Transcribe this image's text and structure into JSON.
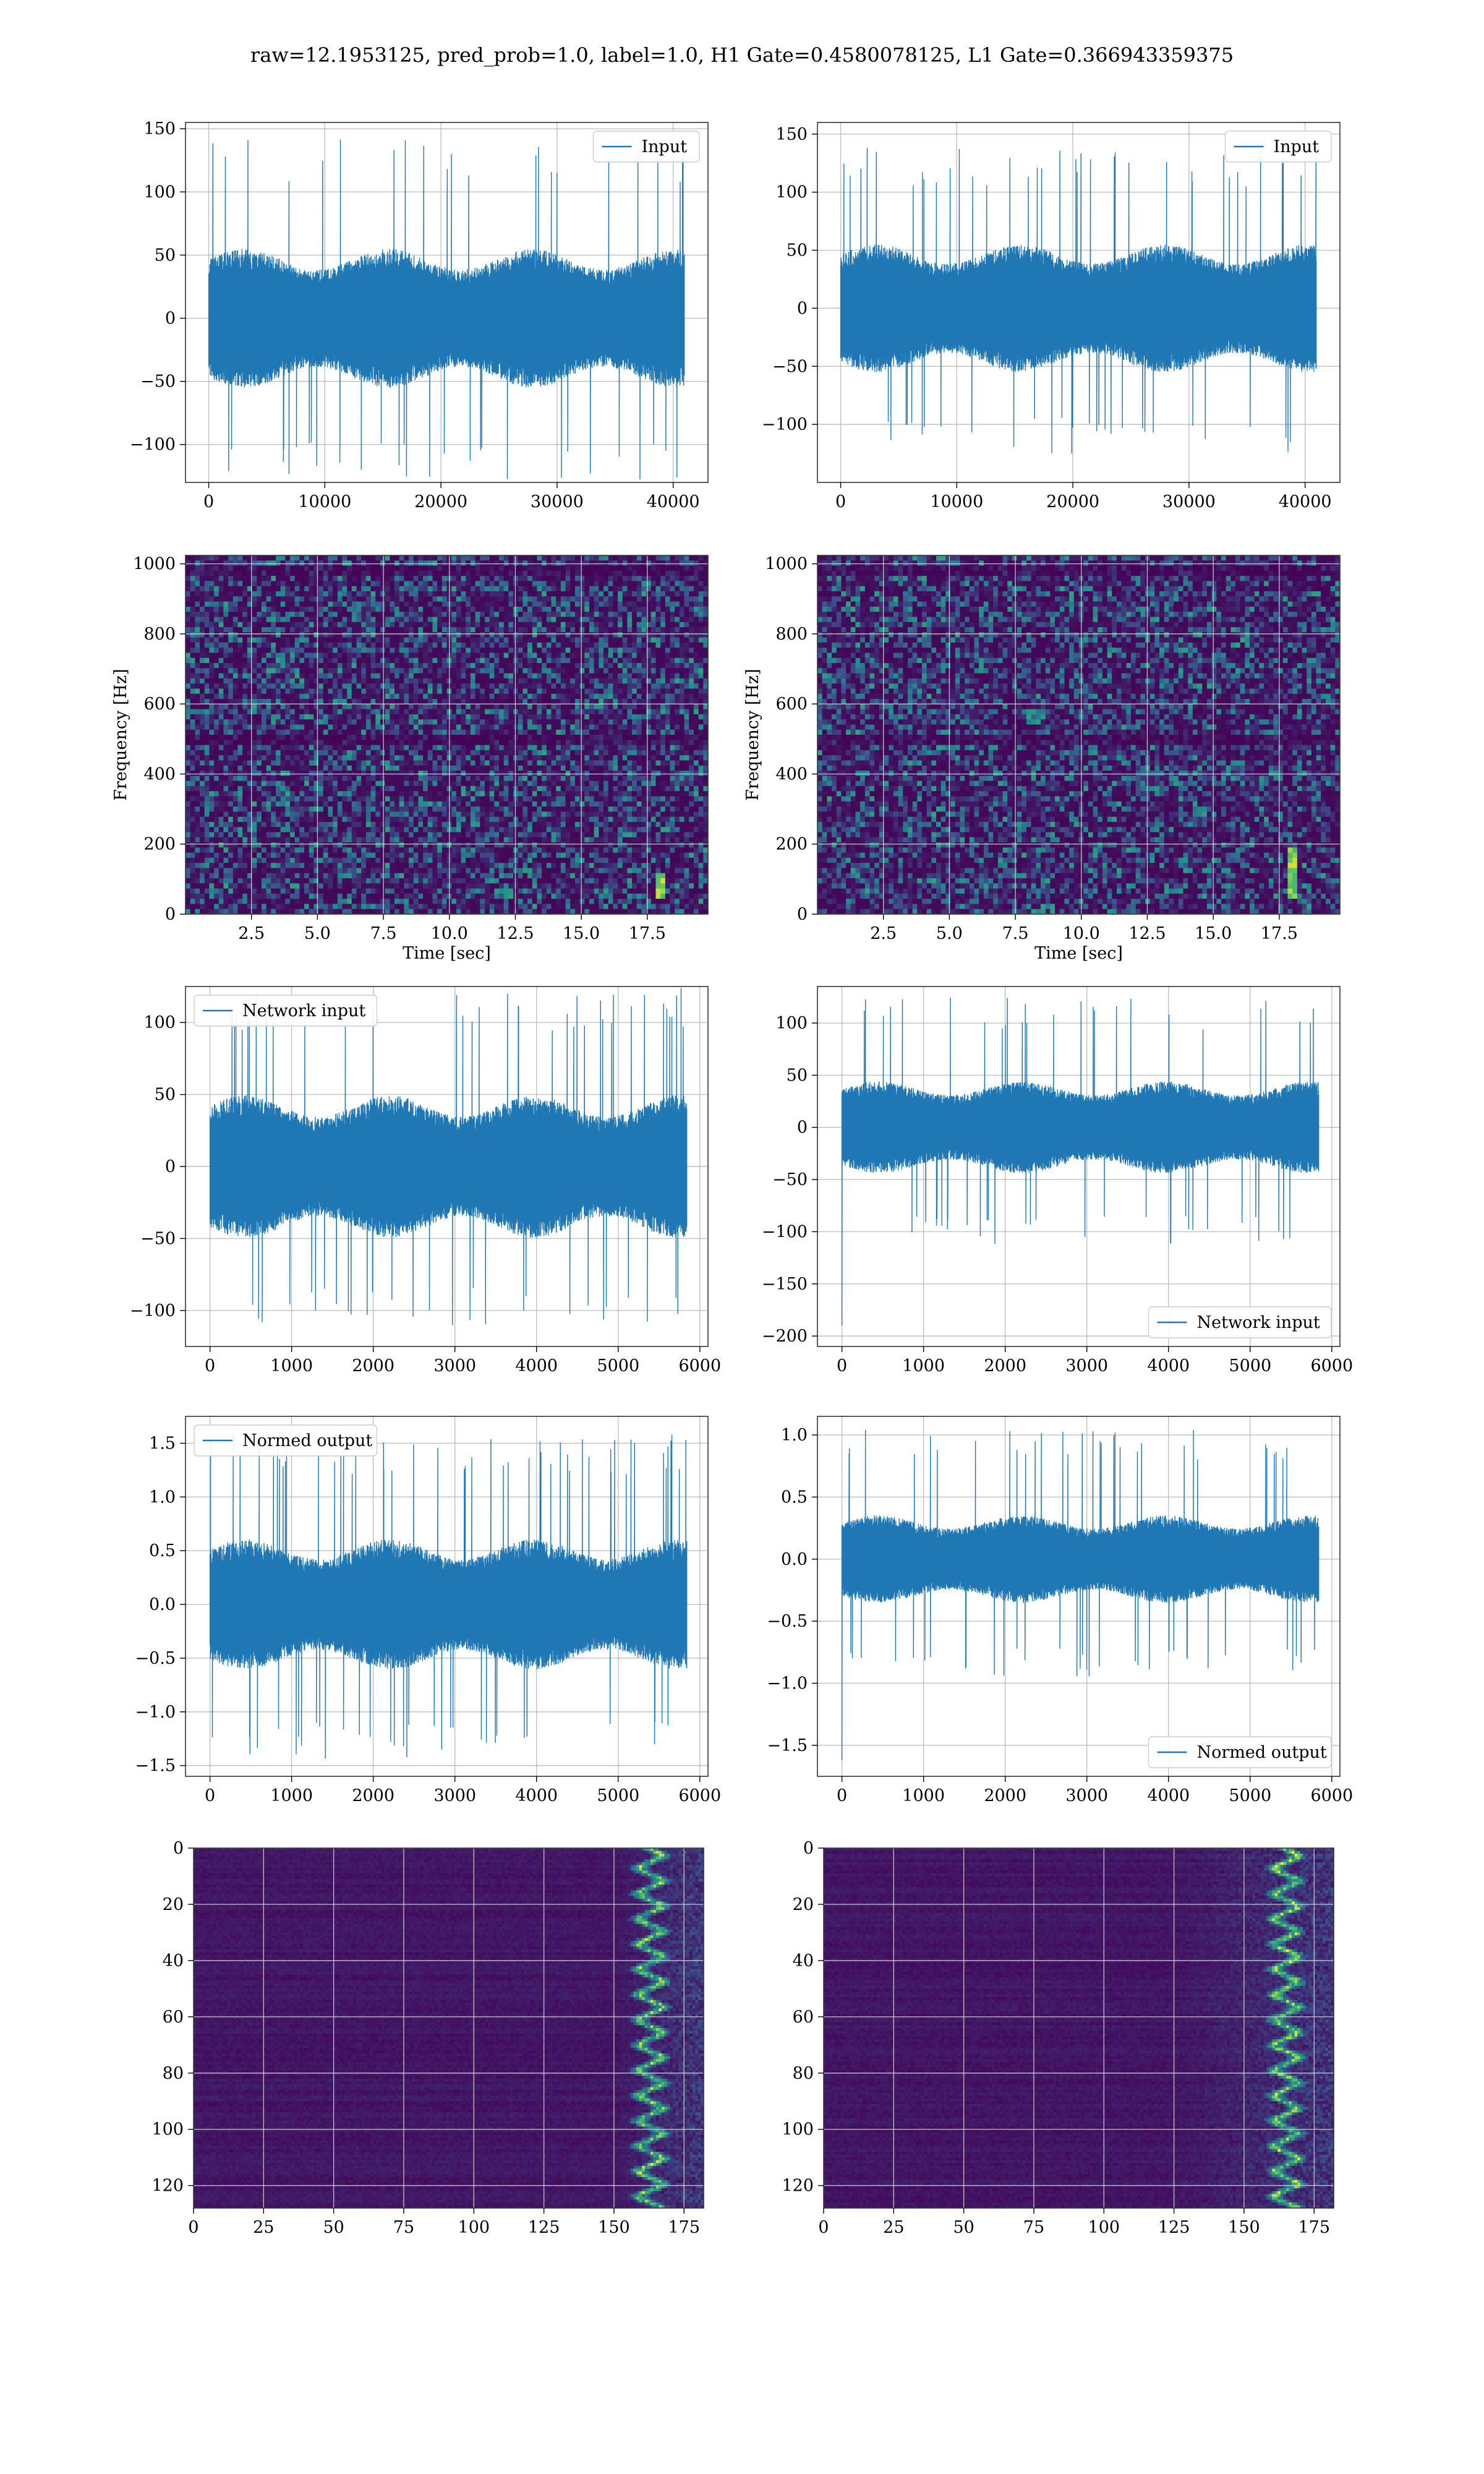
{
  "figure_title": "raw=12.1953125, pred_prob=1.0, label=1.0, H1 Gate=0.4580078125, L1 Gate=0.366943359375",
  "colors": {
    "line": "#1f77b4",
    "grid": "#b0b0b0",
    "spine": "#333333",
    "viridis_dark": "#440154"
  },
  "chart_data": [
    {
      "id": "h1-input",
      "type": "line",
      "series": [
        {
          "name": "Input",
          "values": []
        }
      ],
      "xlim": [
        -2000,
        43000
      ],
      "ylim": [
        -130,
        155
      ],
      "x_ticks": [
        0,
        10000,
        20000,
        30000,
        40000
      ],
      "x_tick_labels": [
        "0",
        "10000",
        "20000",
        "30000",
        "40000"
      ],
      "y_ticks": [
        -100,
        -50,
        0,
        50,
        100,
        150
      ],
      "y_tick_labels": [
        "−100",
        "−50",
        "0",
        "50",
        "100",
        "150"
      ],
      "n_points": 40960,
      "amplitude_typical": 50,
      "amplitude_max": 143,
      "xlabel": "",
      "ylabel": "",
      "legend": "upper right",
      "grid": true
    },
    {
      "id": "l1-input",
      "type": "line",
      "series": [
        {
          "name": "Input",
          "values": []
        }
      ],
      "xlim": [
        -2000,
        43000
      ],
      "ylim": [
        -150,
        160
      ],
      "x_ticks": [
        0,
        10000,
        20000,
        30000,
        40000
      ],
      "x_tick_labels": [
        "0",
        "10000",
        "20000",
        "30000",
        "40000"
      ],
      "y_ticks": [
        -100,
        -50,
        0,
        50,
        100,
        150
      ],
      "y_tick_labels": [
        "−100",
        "−50",
        "0",
        "50",
        "100",
        "150"
      ],
      "n_points": 40960,
      "amplitude_typical": 50,
      "amplitude_max": 140,
      "xlabel": "",
      "ylabel": "",
      "legend": "upper right",
      "grid": true
    },
    {
      "id": "h1-spectrogram",
      "type": "heatmap",
      "xlim": [
        0,
        19.8
      ],
      "ylim": [
        0,
        1024
      ],
      "x_ticks": [
        2.5,
        5.0,
        7.5,
        10.0,
        12.5,
        15.0,
        17.5
      ],
      "x_tick_labels": [
        "2.5",
        "5.0",
        "7.5",
        "10.0",
        "12.5",
        "15.0",
        "17.5"
      ],
      "y_ticks": [
        0,
        200,
        400,
        600,
        800,
        1000
      ],
      "y_tick_labels": [
        "0",
        "200",
        "400",
        "600",
        "800",
        "1000"
      ],
      "xlabel": "Time [sec]",
      "ylabel": "Frequency [Hz]",
      "colormap": "viridis",
      "grid": true,
      "hotspot": {
        "time": 18.0,
        "freq_low": 50,
        "freq_high": 120
      }
    },
    {
      "id": "l1-spectrogram",
      "type": "heatmap",
      "xlim": [
        0,
        19.8
      ],
      "ylim": [
        0,
        1024
      ],
      "x_ticks": [
        2.5,
        5.0,
        7.5,
        10.0,
        12.5,
        15.0,
        17.5
      ],
      "x_tick_labels": [
        "2.5",
        "5.0",
        "7.5",
        "10.0",
        "12.5",
        "15.0",
        "17.5"
      ],
      "y_ticks": [
        0,
        200,
        400,
        600,
        800,
        1000
      ],
      "y_tick_labels": [
        "0",
        "200",
        "400",
        "600",
        "800",
        "1000"
      ],
      "xlabel": "Time [sec]",
      "ylabel": "Frequency [Hz]",
      "colormap": "viridis",
      "grid": true,
      "hotspot": {
        "time": 18.0,
        "freq_low": 40,
        "freq_high": 190
      }
    },
    {
      "id": "h1-network-input",
      "type": "line",
      "series": [
        {
          "name": "Network input",
          "values": []
        }
      ],
      "xlim": [
        -300,
        6100
      ],
      "ylim": [
        -125,
        125
      ],
      "x_ticks": [
        0,
        1000,
        2000,
        3000,
        4000,
        5000,
        6000
      ],
      "x_tick_labels": [
        "0",
        "1000",
        "2000",
        "3000",
        "4000",
        "5000",
        "6000"
      ],
      "y_ticks": [
        -100,
        -50,
        0,
        50,
        100
      ],
      "y_tick_labels": [
        "−100",
        "−50",
        "0",
        "50",
        "100"
      ],
      "n_points": 5840,
      "amplitude_typical": 45,
      "amplitude_max": 125,
      "xlabel": "",
      "ylabel": "",
      "legend": "upper left",
      "grid": true
    },
    {
      "id": "l1-network-input",
      "type": "line",
      "series": [
        {
          "name": "Network input",
          "values": []
        }
      ],
      "xlim": [
        -300,
        6100
      ],
      "ylim": [
        -210,
        135
      ],
      "x_ticks": [
        0,
        1000,
        2000,
        3000,
        4000,
        5000,
        6000
      ],
      "x_tick_labels": [
        "0",
        "1000",
        "2000",
        "3000",
        "4000",
        "5000",
        "6000"
      ],
      "y_ticks": [
        -200,
        -150,
        -100,
        -50,
        0,
        50,
        100
      ],
      "y_tick_labels": [
        "−200",
        "−150",
        "−100",
        "−50",
        "0",
        "50",
        "100"
      ],
      "n_points": 5840,
      "amplitude_typical": 40,
      "amplitude_max": 125,
      "initial_spike": -190,
      "xlabel": "",
      "ylabel": "",
      "legend": "lower right",
      "grid": true
    },
    {
      "id": "h1-normed-output",
      "type": "line",
      "series": [
        {
          "name": "Normed output",
          "values": []
        }
      ],
      "xlim": [
        -300,
        6100
      ],
      "ylim": [
        -1.6,
        1.75
      ],
      "x_ticks": [
        0,
        1000,
        2000,
        3000,
        4000,
        5000,
        6000
      ],
      "x_tick_labels": [
        "0",
        "1000",
        "2000",
        "3000",
        "4000",
        "5000",
        "6000"
      ],
      "y_ticks": [
        -1.5,
        -1.0,
        -0.5,
        0.0,
        0.5,
        1.0,
        1.5
      ],
      "y_tick_labels": [
        "−1.5",
        "−1.0",
        "−0.5",
        "0.0",
        "0.5",
        "1.0",
        "1.5"
      ],
      "n_points": 5840,
      "amplitude_typical": 0.55,
      "amplitude_max": 1.6,
      "xlabel": "",
      "ylabel": "",
      "legend": "upper left",
      "grid": true
    },
    {
      "id": "l1-normed-output",
      "type": "line",
      "series": [
        {
          "name": "Normed output",
          "values": []
        }
      ],
      "xlim": [
        -300,
        6100
      ],
      "ylim": [
        -1.75,
        1.15
      ],
      "x_ticks": [
        0,
        1000,
        2000,
        3000,
        4000,
        5000,
        6000
      ],
      "x_tick_labels": [
        "0",
        "1000",
        "2000",
        "3000",
        "4000",
        "5000",
        "6000"
      ],
      "y_ticks": [
        -1.5,
        -1.0,
        -0.5,
        0.0,
        0.5,
        1.0
      ],
      "y_tick_labels": [
        "−1.5",
        "−1.0",
        "−0.5",
        "0.0",
        "0.5",
        "1.0"
      ],
      "n_points": 5840,
      "amplitude_typical": 0.32,
      "amplitude_max": 1.05,
      "initial_spike": -1.62,
      "xlabel": "",
      "ylabel": "",
      "legend": "lower right",
      "grid": true
    },
    {
      "id": "h1-feature-map",
      "type": "heatmap",
      "xlim": [
        0,
        182
      ],
      "ylim": [
        128,
        0
      ],
      "x_ticks": [
        0,
        25,
        50,
        75,
        100,
        125,
        150,
        175
      ],
      "x_tick_labels": [
        "0",
        "25",
        "50",
        "75",
        "100",
        "125",
        "150",
        "175"
      ],
      "y_ticks": [
        0,
        20,
        40,
        60,
        80,
        100,
        120
      ],
      "y_tick_labels": [
        "0",
        "20",
        "40",
        "60",
        "80",
        "100",
        "120"
      ],
      "colormap": "viridis",
      "grid": true,
      "active_band": [
        150,
        178
      ],
      "peak_center": 163
    },
    {
      "id": "l1-feature-map",
      "type": "heatmap",
      "xlim": [
        0,
        182
      ],
      "ylim": [
        128,
        0
      ],
      "x_ticks": [
        0,
        25,
        50,
        75,
        100,
        125,
        150,
        175
      ],
      "x_tick_labels": [
        "0",
        "25",
        "50",
        "75",
        "100",
        "125",
        "150",
        "175"
      ],
      "y_ticks": [
        0,
        20,
        40,
        60,
        80,
        100,
        120
      ],
      "y_tick_labels": [
        "0",
        "20",
        "40",
        "60",
        "80",
        "100",
        "120"
      ],
      "colormap": "viridis",
      "grid": true,
      "active_band": [
        125,
        178
      ],
      "peak_center": 165
    }
  ]
}
